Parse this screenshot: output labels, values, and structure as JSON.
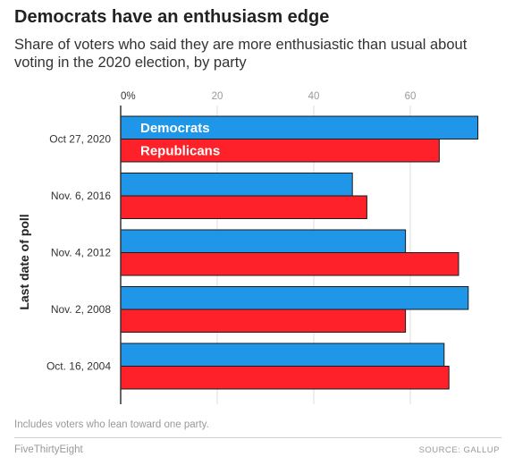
{
  "title": "Democrats have an enthusiasm edge",
  "subtitle": "Share of voters who said they are more enthusiastic than usual about voting in the 2020 election, by party",
  "note": "Includes voters who lean toward one party.",
  "brand": "FiveThirtyEight",
  "source": "SOURCE: GALLUP",
  "chart_data": {
    "type": "bar",
    "orientation": "horizontal",
    "categories": [
      "Oct 27, 2020",
      "Nov. 6, 2016",
      "Nov. 4, 2012",
      "Nov. 2, 2008",
      "Oct. 16, 2004"
    ],
    "series": [
      {
        "name": "Democrats",
        "color": "#1f96e8",
        "values": [
          74,
          48,
          59,
          72,
          67
        ]
      },
      {
        "name": "Republicans",
        "color": "#fe2129",
        "values": [
          66,
          51,
          70,
          59,
          68
        ]
      }
    ],
    "xlim": [
      0,
      80
    ],
    "xticks": [
      0,
      20,
      40,
      60
    ],
    "xtick_labels": [
      "0%",
      "20",
      "40",
      "60"
    ],
    "xtick_position": "top",
    "ylabel": "Last date of poll",
    "grid": true,
    "legend": "inside-first-group"
  }
}
